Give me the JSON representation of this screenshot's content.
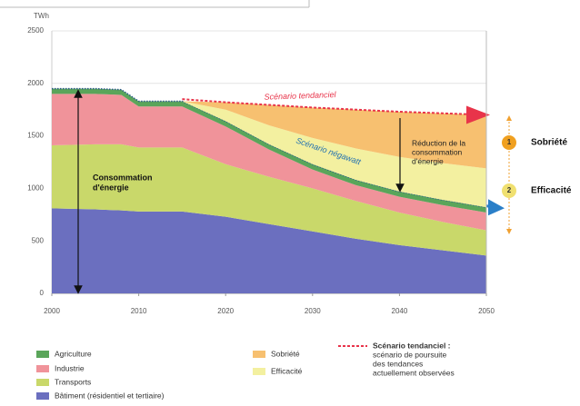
{
  "chart_data": {
    "type": "stacked_area",
    "y_axis_label": "TWh",
    "x": [
      2000,
      2005,
      2008,
      2010,
      2015,
      2020,
      2025,
      2030,
      2035,
      2040,
      2045,
      2050
    ],
    "series": [
      {
        "name": "Bâtiment",
        "legend_label": "Bâtiment (résidentiel et tertiaire)",
        "color": "#6b6fbf",
        "values": [
          810,
          800,
          790,
          780,
          780,
          730,
          660,
          590,
          520,
          460,
          410,
          360
        ]
      },
      {
        "name": "Transports",
        "color": "#c9d86a",
        "values": [
          600,
          620,
          630,
          610,
          610,
          500,
          450,
          410,
          360,
          310,
          270,
          240
        ]
      },
      {
        "name": "Industrie",
        "color": "#f0939a",
        "values": [
          490,
          480,
          470,
          390,
          390,
          360,
          260,
          180,
          150,
          150,
          160,
          170
        ]
      },
      {
        "name": "Agriculture",
        "color": "#5aa55a",
        "values": [
          50,
          50,
          50,
          50,
          50,
          50,
          50,
          50,
          50,
          50,
          50,
          50
        ]
      },
      {
        "name": "Efficacité",
        "color": "#f3f0a0",
        "values": [
          0,
          0,
          0,
          0,
          0,
          110,
          180,
          250,
          300,
          330,
          350,
          370
        ]
      },
      {
        "name": "Sobriété",
        "color": "#f7c070",
        "values": [
          0,
          0,
          0,
          0,
          0,
          70,
          195,
          290,
          370,
          430,
          475,
          510
        ]
      }
    ],
    "reference_line": {
      "name": "Scénario tendanciel",
      "legend_label": "Scénario tendanciel :",
      "legend_note": [
        "scénario de poursuite",
        "des tendances",
        "actuellement observées"
      ],
      "color": "#e8344a",
      "values": [
        null,
        null,
        null,
        null,
        1850,
        1820,
        1795,
        1770,
        1750,
        1730,
        1715,
        1700
      ]
    },
    "negawatt_label": "Scénario négawatt",
    "annotations": {
      "consumption": [
        "Consommation",
        "d'énergie"
      ],
      "reduction": [
        "Réduction de la",
        "consommation",
        "d'énergie"
      ],
      "step1": {
        "number": "1",
        "label": "Sobriété"
      },
      "step2": {
        "number": "2",
        "label": "Efficacité"
      }
    },
    "xlim": [
      2000,
      2050
    ],
    "ylim": [
      0,
      2500
    ],
    "xticks": [
      2000,
      2010,
      2020,
      2030,
      2040,
      2050
    ],
    "yticks": [
      0,
      500,
      1000,
      1500,
      2000,
      2500
    ],
    "grid": true
  }
}
